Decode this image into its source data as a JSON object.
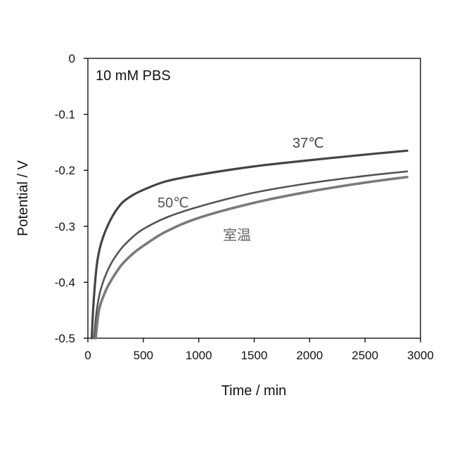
{
  "chart_data": {
    "type": "line",
    "title": "",
    "xlabel": "Time / min",
    "ylabel": "Potential / V",
    "xlim": [
      0,
      3000
    ],
    "ylim": [
      -0.5,
      0
    ],
    "xticks": [
      0,
      500,
      1000,
      1500,
      2000,
      2500,
      3000
    ],
    "yticks": [
      0,
      -0.1,
      -0.2,
      -0.3,
      -0.4,
      -0.5
    ],
    "xtick_labels": [
      "0",
      "500",
      "1000",
      "1500",
      "2000",
      "2500",
      "3000"
    ],
    "ytick_labels": [
      "0",
      "-0.1",
      "-0.2",
      "-0.3",
      "-0.4",
      "-0.5"
    ],
    "annotation": "10 mM PBS",
    "grid": false,
    "legend": "none",
    "series": [
      {
        "name": "37℃",
        "color": "#444444",
        "x": [
          35,
          50,
          80,
          120,
          200,
          300,
          400,
          500,
          700,
          1000,
          1500,
          2000,
          2500,
          2880
        ],
        "y": [
          -0.5,
          -0.44,
          -0.37,
          -0.33,
          -0.29,
          -0.26,
          -0.245,
          -0.235,
          -0.22,
          -0.208,
          -0.193,
          -0.182,
          -0.172,
          -0.165
        ]
      },
      {
        "name": "50℃",
        "color": "#555555",
        "x": [
          55,
          80,
          120,
          200,
          300,
          400,
          500,
          700,
          1000,
          1500,
          2000,
          2500,
          2880
        ],
        "y": [
          -0.5,
          -0.45,
          -0.41,
          -0.37,
          -0.34,
          -0.32,
          -0.305,
          -0.285,
          -0.265,
          -0.24,
          -0.223,
          -0.21,
          -0.202
        ]
      },
      {
        "name": "室温",
        "color": "#7a7a7a",
        "x": [
          70,
          100,
          150,
          200,
          300,
          400,
          500,
          700,
          1000,
          1500,
          2000,
          2500,
          2880
        ],
        "y": [
          -0.5,
          -0.45,
          -0.42,
          -0.4,
          -0.37,
          -0.35,
          -0.335,
          -0.31,
          -0.285,
          -0.258,
          -0.238,
          -0.222,
          -0.212
        ]
      }
    ]
  }
}
